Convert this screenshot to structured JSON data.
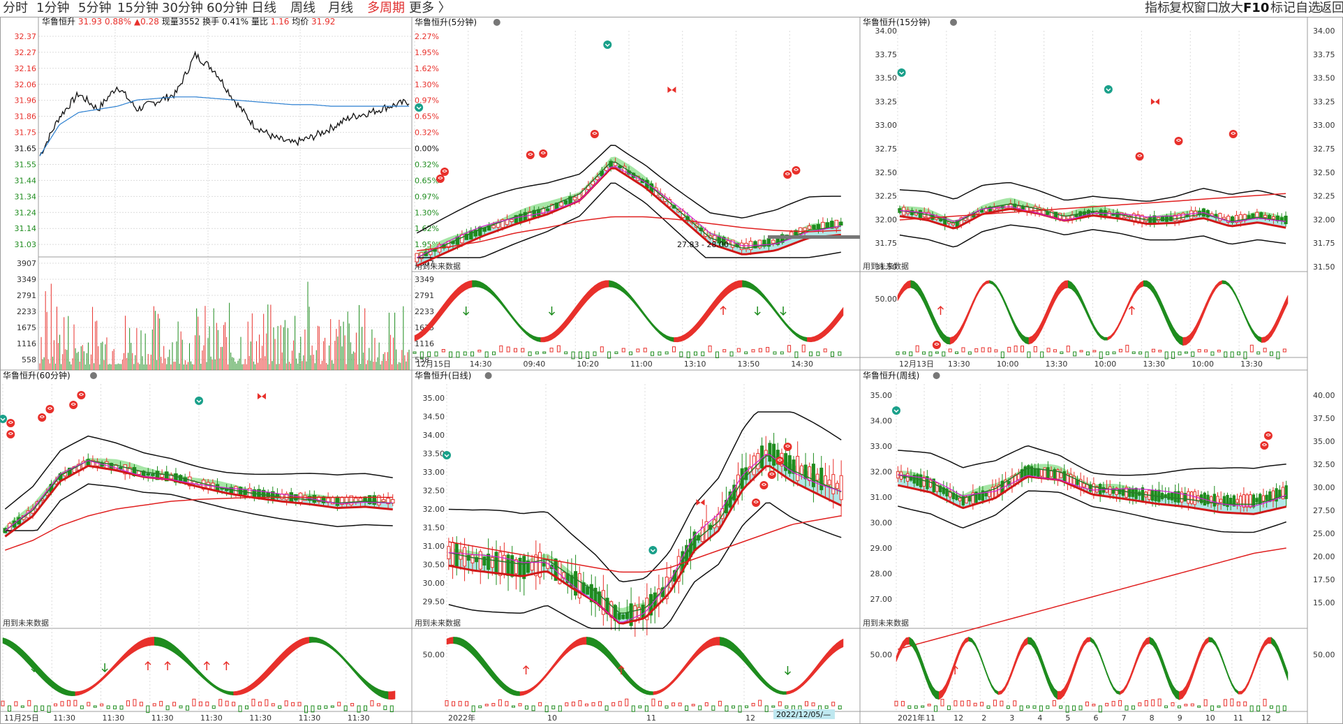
{
  "toolbar": {
    "left_items": [
      "分时",
      "1分钟",
      "5分钟",
      "15分钟",
      "30分钟",
      "60分钟",
      "日线",
      "周线",
      "月线",
      "多周期",
      "更多 〉"
    ],
    "active_item": "多周期",
    "right_items": [
      "指标",
      "复权",
      "窗口",
      "放大",
      "F10",
      "标记",
      "自选",
      "返回"
    ]
  },
  "colors": {
    "up": "#e8302b",
    "down": "#1e8c1e",
    "band_fill": "#a8e4e4",
    "green_fill": "#90e090",
    "price_line": "#111111",
    "avg_line": "#2b7fd0",
    "grid": "#dcdcdc",
    "border": "#9c9c9c"
  },
  "panels": {
    "intraday": {
      "title": "华鲁恒升",
      "price": "31.93",
      "pct": "0.88%",
      "chg": "▲0.28",
      "vol_label": "现量",
      "vol": "3552",
      "turnover_label": "换手",
      "turnover": "0.41%",
      "ratio_label": "量比",
      "ratio": "1.16",
      "avg_label": "均价",
      "avg": "31.92",
      "price_ticks_left": [
        "32.37",
        "32.27",
        "32.16",
        "32.06",
        "31.96",
        "31.86",
        "31.75",
        "31.65",
        "31.55",
        "31.44",
        "31.34",
        "31.24",
        "31.14",
        "31.03"
      ],
      "pct_ticks_right": [
        "2.27%",
        "1.95%",
        "1.62%",
        "1.30%",
        "0.97%",
        "0.65%",
        "0.32%",
        "0.00%",
        "0.32%",
        "0.65%",
        "0.97%",
        "1.30%",
        "1.62%",
        "1.95%"
      ],
      "vol_ticks": [
        "3907",
        "3349",
        "2791",
        "2233",
        "1675",
        "1116",
        "558"
      ]
    },
    "p5": {
      "title": "华鲁恒升(5分钟)",
      "future_label": "用到未来数据",
      "y_ticks": [],
      "x_labels": [
        "12月15日",
        "14:30",
        "09:40",
        "10:20",
        "11:00",
        "13:10",
        "13:50",
        "14:30"
      ]
    },
    "p15": {
      "title": "华鲁恒升(15分钟)",
      "future_label": "用到未来数据",
      "y_ticks": [
        "34.00",
        "33.75",
        "33.50",
        "33.25",
        "33.00",
        "32.75",
        "32.50",
        "32.25",
        "32.00",
        "31.75",
        "31.50"
      ],
      "y_ticks_right": [
        "34.00",
        "33.75",
        "33.50",
        "33.25",
        "33.00",
        "32.75",
        "32.50",
        "32.25",
        "32.00",
        "31.75",
        "31.50"
      ],
      "ind_tick": "50.00",
      "x_labels": [
        "12月13日",
        "13:30",
        "10:00",
        "13:30",
        "10:00",
        "13:30",
        "10:00",
        "13:30"
      ]
    },
    "p60": {
      "title": "华鲁恒升(60分钟)",
      "future_label": "用到未来数据",
      "x_labels": [
        "11月25日",
        "11:30",
        "11:30",
        "11:30",
        "11:30",
        "11:30",
        "11:30",
        "11:30"
      ]
    },
    "pday": {
      "title": "华鲁恒升(日线)",
      "future_label": "用到未来数据",
      "y_ticks": [
        "35.00",
        "34.50",
        "34.00",
        "33.50",
        "33.00",
        "32.50",
        "32.00",
        "31.50",
        "31.00",
        "30.50",
        "30.00",
        "29.50"
      ],
      "ind_tick": "50.00",
      "range_label": "27.83 - 28.00",
      "x_labels": [
        "2022年",
        "10",
        "11",
        "12"
      ],
      "date_box": "2022/12/05/—"
    },
    "pweek": {
      "title": "华鲁恒升(周线)",
      "future_label": "用到未来数据",
      "y_ticks": [
        "35.00",
        "34.00",
        "33.00",
        "32.00",
        "31.00",
        "30.00",
        "29.00",
        "28.00",
        "27.00"
      ],
      "y_ticks_right": [
        "40.00",
        "37.50",
        "35.00",
        "32.50",
        "30.00",
        "27.50",
        "25.00",
        "20.00",
        "17.50",
        "15.00"
      ],
      "ind_tick": "50.00",
      "ind_tick_right": "50.00",
      "x_labels": [
        "2021年",
        "11",
        "12",
        "2",
        "3",
        "4",
        "5",
        "6",
        "7",
        "8",
        "9",
        "10",
        "11",
        "12"
      ]
    }
  },
  "chart_data": [
    {
      "type": "line",
      "panel": "intraday",
      "series": [
        {
          "values": [
            31.6,
            31.85,
            32.0,
            31.9,
            32.05,
            31.9,
            31.95,
            32.0,
            32.25,
            32.15,
            31.96,
            31.8,
            31.72,
            31.68,
            31.72,
            31.78,
            31.85,
            31.88,
            31.92,
            31.95
          ]
        },
        {
          "values": [
            31.6,
            31.8,
            31.88,
            31.9,
            31.92,
            31.96,
            31.97,
            31.98,
            31.98,
            31.97,
            31.96,
            31.95,
            31.94,
            31.93,
            31.93,
            31.92,
            31.92,
            31.92,
            31.92,
            31.92
          ]
        }
      ]
    },
    {
      "type": "bar",
      "panel": "p5",
      "ylim": [
        31.4,
        34.0
      ]
    },
    {
      "type": "bar",
      "panel": "p15",
      "ylim": [
        31.5,
        34.0
      ]
    },
    {
      "type": "bar",
      "panel": "p60",
      "ylim": [
        30.0,
        34.0
      ]
    },
    {
      "type": "bar",
      "panel": "pday",
      "ylim": [
        29.3,
        35.0
      ]
    },
    {
      "type": "bar",
      "panel": "pweek",
      "ylim": [
        26.0,
        35.5
      ]
    }
  ]
}
